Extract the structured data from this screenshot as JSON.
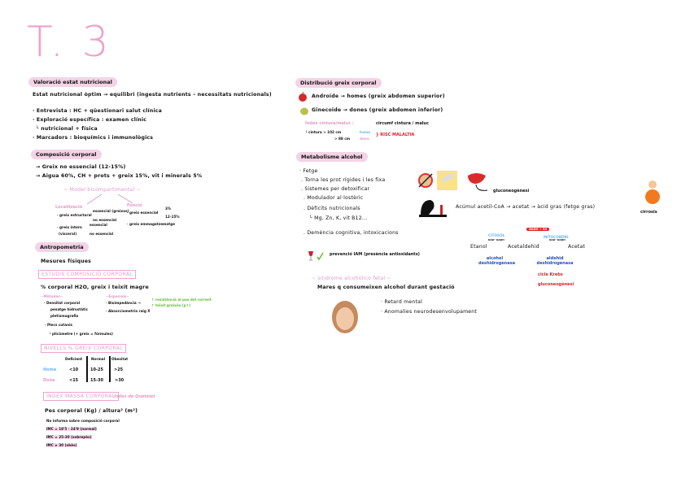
{
  "title": "T. 3",
  "left": {
    "valoracio": {
      "heading": "Valoració estat nutricional",
      "line1": "Estat nutricional òptim → equilibri (ingesta nutrients – necessitats nutricionals)",
      "b1": "· Entrevista : HC + qüestionari salut clínica",
      "b2": "· Exploració específica : examen clínic",
      "b2sub": "└ nutricional + física",
      "b3": "· Marcadors : bioquímics i immunològics"
    },
    "composicio": {
      "heading": "Composició corporal",
      "a1": "→ Greix no essencial (12-15%)",
      "a2": "→ Aigua 60%, CH + prots + greix 15%, vit i minerals 5%",
      "model": "~ Model bicompartimental ~",
      "localitzacio": "Localització",
      "greix_estructural": "· greix estructural",
      "essencial_greixos": "essencial (greixos)",
      "no_essencial1": "no essencial",
      "greix_intern": "· greix intern",
      "visceral": "(visceral)",
      "essencial2": "essencial",
      "no_essencial2": "no essencial",
      "funcio": "Funció",
      "greix_essencial": "· greix essencial",
      "pct_home": "3%",
      "pct_dona": "12-15%",
      "greix_emmag": "· greix emmagatzematge"
    },
    "antropometria": {
      "heading": "Antropometria",
      "mesures": "Mesures físiques",
      "estudis_box": "ESTUDIS COMPOSICIÓ CORPORAL",
      "pct_line": "% corporal H2O, greix i teixit magre",
      "metodes": "~Mètodes~",
      "especials": "~Especials~",
      "densitat": "· Densitat corporal",
      "pesatge": "pesatge hidrostàtic",
      "pletismo": "pletismografia",
      "bioimp": "· Bioimpedància →",
      "green1": "↑ resistència al pas del corrent",
      "green2": "↑ teixit greixós (ρ↑)",
      "absorcio": "· Absorciometria raig X",
      "plecs": "· Plecs cutanis",
      "plicometre": "└ plicòmetre (+ greix = fórmules)"
    },
    "nivells": {
      "box": "NIVELLS % GREIX CORPORAL",
      "headers": [
        "Deficient",
        "Normal",
        "Obesitat"
      ],
      "rows": [
        {
          "label": "Home",
          "values": [
            "<10",
            "10-25",
            ">25"
          ]
        },
        {
          "label": "Dona",
          "values": [
            "<15",
            "15-30",
            ">30"
          ]
        }
      ]
    },
    "imc": {
      "box": "ÍNDEX MASSA CORPORAL",
      "quetelet": "Índex de Quetelet",
      "formula": "Pes corporal (Kg) / altura² (m²)",
      "no_informa": "No informa sobre composició corporal",
      "l1": "IMC = 18'5 - 24'9 (normal)",
      "l2": "IMC = 25-30 (sobrepès)",
      "l3": "IMC ≥ 30 (obès)"
    }
  },
  "right": {
    "distribucio": {
      "heading": "Distribució greix corporal",
      "androide": "Androide → homes (greix abdomen superior)",
      "ginecoide": "Ginecoide → dones (greix abdomen inferior)",
      "index": "Índex cintura/maluc :",
      "index_def": "circumf cintura / maluc",
      "cintura": "└ cintura > 102 cm",
      "home": "home",
      "cintura2": "> 88 cm",
      "dona": "dona",
      "risc": "} RISC MALALTIA"
    },
    "alcohol": {
      "heading": "Metabolisme alcohol",
      "items": [
        "· Fetge",
        ". Torna les prot rígides i les fixa",
        ". Sistemes per detoxificar",
        ". Modulador al·lostèric",
        ". Dèficits nutricionals",
        "└ Mg, Zn, K, vit B12...",
        ". Demència cognitiva, intoxicacions"
      ],
      "prevencio": "prevenció IAM (presència antioxidants)",
      "gluconeo": "gluconeogènesi",
      "acumul": "Acúmul acetil-CoA → acetat → àcid gras (fetge gras)",
      "cirrosi": "cirrosis",
      "nadh": "NADH → SH",
      "citosol": "CITOSOL",
      "mitocondri": "MITOCONDRI",
      "etanol": "Etanol",
      "acetaldehid": "Acetaldehid",
      "acetat": "Acetat",
      "nad": "NAD⁺ NADH",
      "enz1": "alcohol deshidrogenasa",
      "enz2": "aldehid deshidrogenasa",
      "krebs": "cicle Krebs",
      "gluco2": "gluconeogènesi"
    },
    "fetal": {
      "heading": "~ síndrome alcohòlico fetal ~",
      "line": "Mares q consumeixen alcohol durant gestació",
      "b1": "· Retard mental",
      "b2": "· Anomalies neurodesenvolupament"
    }
  },
  "colors": {
    "accent_pink": "#ef9fc9",
    "pill_bg": "#f4d3e6",
    "blue": "#6cb6ef",
    "dark_blue": "#1d4fb8",
    "red": "#e0202a",
    "green": "#5cc02c"
  }
}
